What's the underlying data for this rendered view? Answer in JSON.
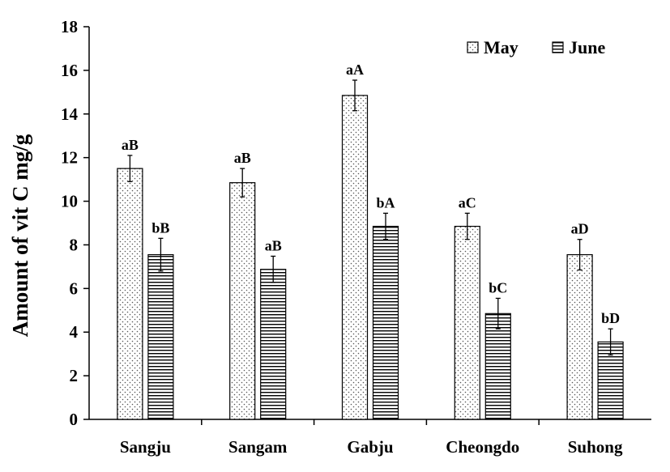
{
  "chart_data": {
    "type": "bar",
    "title": "",
    "xlabel": "",
    "ylabel": "Amount of vit C mg/g",
    "ylim": [
      0,
      18
    ],
    "ytick_step": 2,
    "categories": [
      "Sangju",
      "Sangam",
      "Gabju",
      "Cheongdo",
      "Suhong"
    ],
    "series": [
      {
        "name": "May",
        "pattern": "dots",
        "values": [
          11.5,
          10.85,
          14.85,
          8.85,
          7.55
        ],
        "errors": [
          0.6,
          0.65,
          0.7,
          0.6,
          0.7
        ],
        "labels": [
          "aB",
          "aB",
          "aA",
          "aC",
          "aD"
        ]
      },
      {
        "name": "June",
        "pattern": "horizontal-lines",
        "values": [
          7.55,
          6.88,
          8.85,
          4.85,
          3.55
        ],
        "errors": [
          0.75,
          0.6,
          0.6,
          0.7,
          0.6
        ],
        "labels": [
          "bB",
          "aB",
          "bA",
          "bC",
          "bD"
        ]
      }
    ],
    "legend_position": "top-right",
    "grid": false,
    "colors": {
      "bar_fill": "#ffffff",
      "pattern": "#000000",
      "axis": "#000000"
    }
  }
}
